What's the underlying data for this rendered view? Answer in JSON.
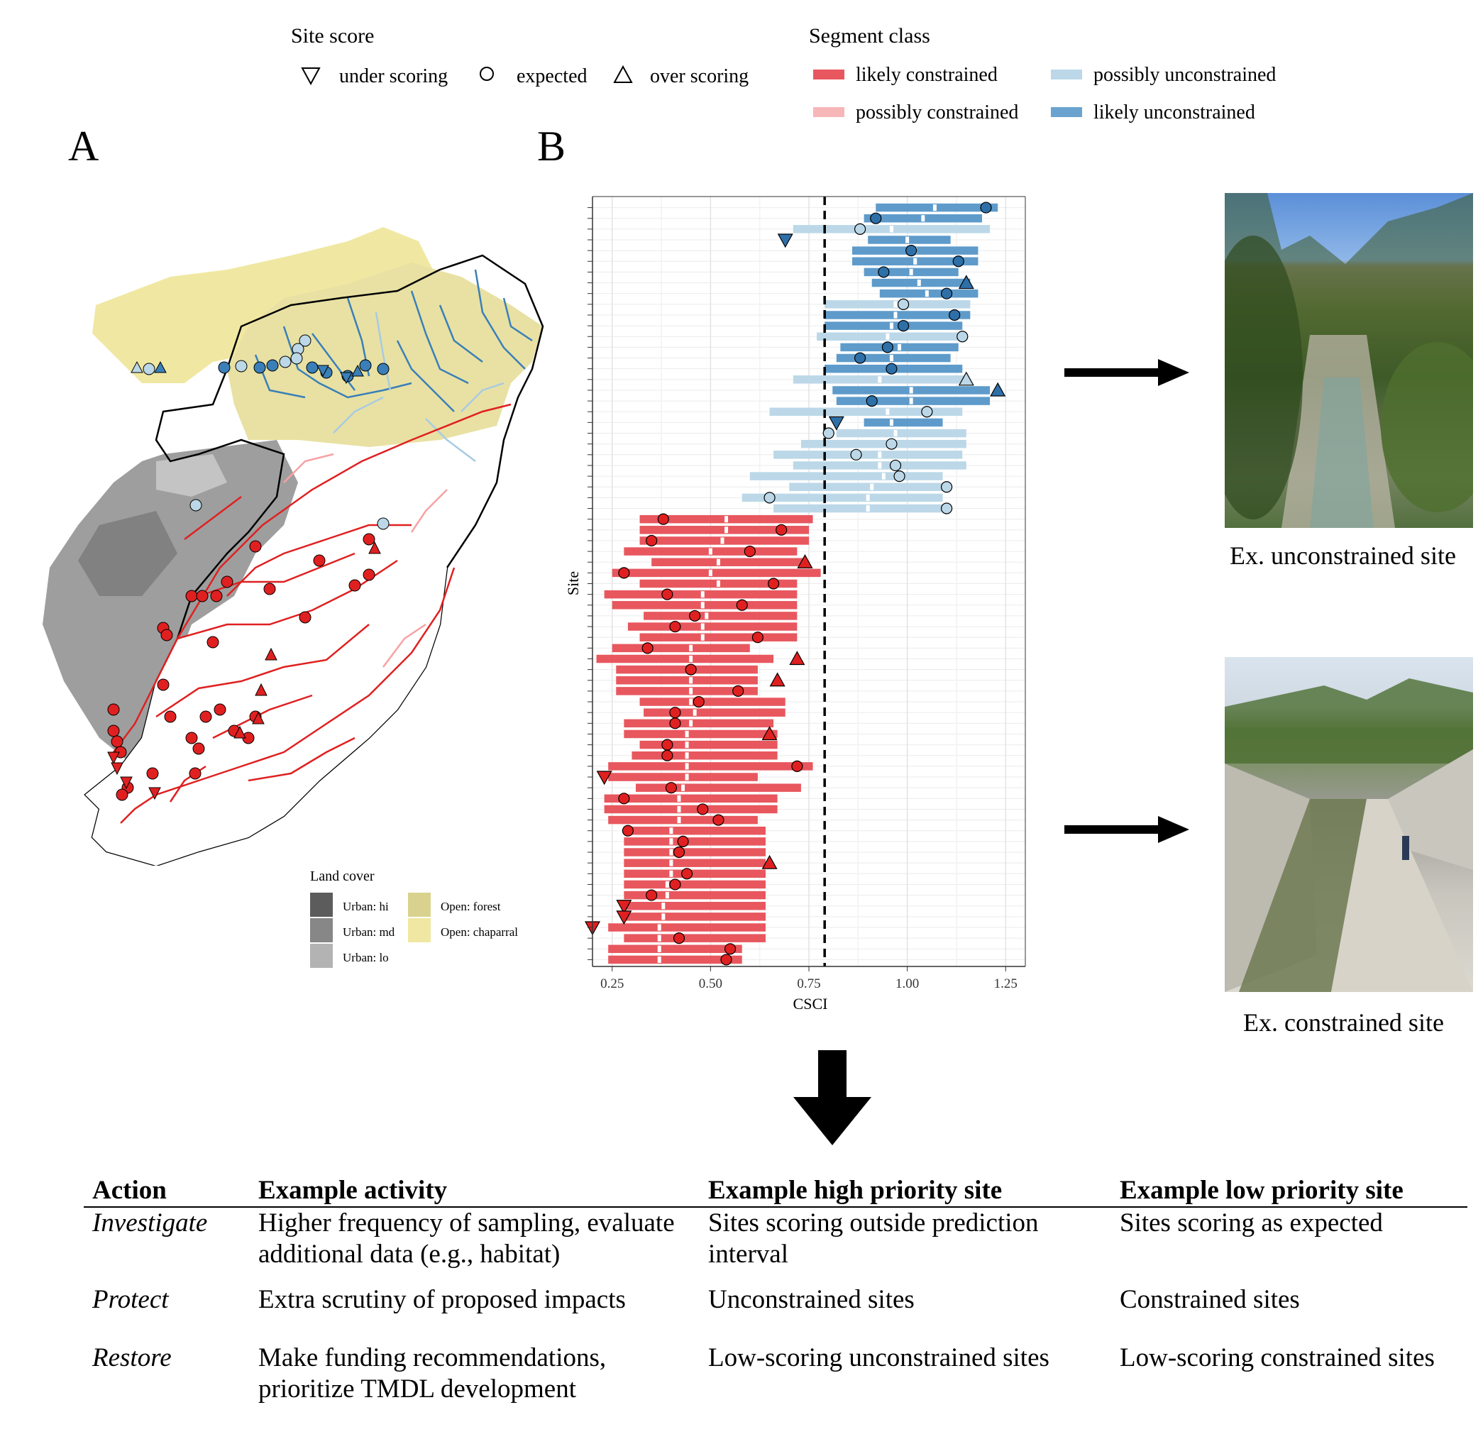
{
  "legend": {
    "site_score": {
      "title": "Site score",
      "items": [
        {
          "label": "under scoring",
          "symbol": "triangle-down"
        },
        {
          "label": "expected",
          "symbol": "circle"
        },
        {
          "label": "over scoring",
          "symbol": "triangle-up"
        }
      ]
    },
    "segment_class": {
      "title": "Segment class",
      "items": [
        {
          "label": "likely constrained",
          "color": "#E8575E"
        },
        {
          "label": "possibly constrained",
          "color": "#F7B6B8"
        },
        {
          "label": "possibly unconstrained",
          "color": "#BCD8E8"
        },
        {
          "label": "likely unconstrained",
          "color": "#6AA3CF"
        }
      ]
    }
  },
  "panels": {
    "a": "A",
    "b": "B"
  },
  "land_cover": {
    "title": "Land cover",
    "items": [
      {
        "label": "Urban: hi",
        "color": "#5C5C5C"
      },
      {
        "label": "Urban: md",
        "color": "#878787"
      },
      {
        "label": "Urban: lo",
        "color": "#B3B3B3"
      },
      {
        "label": "Open: forest",
        "color": "#D9D28F"
      },
      {
        "label": "Open: chaparral",
        "color": "#F0E8A2"
      }
    ]
  },
  "chart_data": {
    "type": "range-dot",
    "xlabel": "CSCI",
    "ylabel": "Site",
    "xlim": [
      0.2,
      1.3
    ],
    "xticks": [
      "0.25",
      "0.50",
      "0.75",
      "1.00",
      "1.25"
    ],
    "threshold": 0.79,
    "sites": [
      {
        "lo": 0.92,
        "hi": 1.23,
        "med": 1.07,
        "score": 1.2,
        "cls": "lu",
        "sym": "c"
      },
      {
        "lo": 0.89,
        "hi": 1.19,
        "med": 1.04,
        "score": 0.92,
        "cls": "lu",
        "sym": "c"
      },
      {
        "lo": 0.71,
        "hi": 1.21,
        "med": 0.96,
        "score": 0.88,
        "cls": "pu",
        "sym": "c"
      },
      {
        "lo": 0.9,
        "hi": 1.11,
        "med": 1.0,
        "score": 0.69,
        "cls": "lu",
        "sym": "d"
      },
      {
        "lo": 0.86,
        "hi": 1.18,
        "med": 1.02,
        "score": 1.01,
        "cls": "lu",
        "sym": "c"
      },
      {
        "lo": 0.86,
        "hi": 1.18,
        "med": 1.02,
        "score": 1.13,
        "cls": "lu",
        "sym": "c"
      },
      {
        "lo": 0.89,
        "hi": 1.13,
        "med": 1.01,
        "score": 0.94,
        "cls": "lu",
        "sym": "c"
      },
      {
        "lo": 0.91,
        "hi": 1.16,
        "med": 1.03,
        "score": 1.15,
        "cls": "lu",
        "sym": "u"
      },
      {
        "lo": 0.93,
        "hi": 1.18,
        "med": 1.05,
        "score": 1.1,
        "cls": "lu",
        "sym": "c"
      },
      {
        "lo": 0.79,
        "hi": 1.16,
        "med": 0.97,
        "score": 0.99,
        "cls": "pu",
        "sym": "c"
      },
      {
        "lo": 0.79,
        "hi": 1.16,
        "med": 0.97,
        "score": 1.12,
        "cls": "lu",
        "sym": "c"
      },
      {
        "lo": 0.79,
        "hi": 1.14,
        "med": 0.96,
        "score": 0.99,
        "cls": "lu",
        "sym": "c"
      },
      {
        "lo": 0.77,
        "hi": 1.14,
        "med": 0.95,
        "score": 1.14,
        "cls": "pu",
        "sym": "c"
      },
      {
        "lo": 0.83,
        "hi": 1.13,
        "med": 0.98,
        "score": 0.95,
        "cls": "lu",
        "sym": "c"
      },
      {
        "lo": 0.82,
        "hi": 1.11,
        "med": 0.96,
        "score": 0.88,
        "cls": "lu",
        "sym": "c"
      },
      {
        "lo": 0.79,
        "hi": 1.14,
        "med": 0.96,
        "score": 0.96,
        "cls": "lu",
        "sym": "c"
      },
      {
        "lo": 0.71,
        "hi": 1.15,
        "med": 0.93,
        "score": 1.15,
        "cls": "pu",
        "sym": "u"
      },
      {
        "lo": 0.81,
        "hi": 1.21,
        "med": 1.01,
        "score": 1.23,
        "cls": "lu",
        "sym": "u"
      },
      {
        "lo": 0.82,
        "hi": 1.21,
        "med": 1.01,
        "score": 0.91,
        "cls": "lu",
        "sym": "c"
      },
      {
        "lo": 0.65,
        "hi": 1.14,
        "med": 0.95,
        "score": 1.05,
        "cls": "pu",
        "sym": "c"
      },
      {
        "lo": 0.89,
        "hi": 1.09,
        "med": 0.96,
        "score": 0.82,
        "cls": "lu",
        "sym": "d"
      },
      {
        "lo": 0.82,
        "hi": 1.15,
        "med": 0.97,
        "score": 0.8,
        "cls": "pu",
        "sym": "c"
      },
      {
        "lo": 0.73,
        "hi": 1.15,
        "med": 0.96,
        "score": 0.96,
        "cls": "pu",
        "sym": "c"
      },
      {
        "lo": 0.66,
        "hi": 1.14,
        "med": 0.93,
        "score": 0.87,
        "cls": "pu",
        "sym": "c"
      },
      {
        "lo": 0.71,
        "hi": 1.15,
        "med": 0.93,
        "score": 0.97,
        "cls": "pu",
        "sym": "c"
      },
      {
        "lo": 0.6,
        "hi": 1.09,
        "med": 0.94,
        "score": 0.98,
        "cls": "pu",
        "sym": "c"
      },
      {
        "lo": 0.7,
        "hi": 1.1,
        "med": 0.91,
        "score": 1.1,
        "cls": "pu",
        "sym": "c"
      },
      {
        "lo": 0.58,
        "hi": 1.09,
        "med": 0.9,
        "score": 0.65,
        "cls": "pu",
        "sym": "c"
      },
      {
        "lo": 0.66,
        "hi": 1.09,
        "med": 0.9,
        "score": 1.1,
        "cls": "pu",
        "sym": "c"
      },
      {
        "lo": 0.32,
        "hi": 0.76,
        "med": 0.54,
        "score": 0.38,
        "cls": "lc",
        "sym": "c"
      },
      {
        "lo": 0.32,
        "hi": 0.75,
        "med": 0.54,
        "score": 0.68,
        "cls": "lc",
        "sym": "c"
      },
      {
        "lo": 0.32,
        "hi": 0.75,
        "med": 0.53,
        "score": 0.35,
        "cls": "lc",
        "sym": "c"
      },
      {
        "lo": 0.28,
        "hi": 0.72,
        "med": 0.5,
        "score": 0.6,
        "cls": "lc",
        "sym": "c"
      },
      {
        "lo": 0.35,
        "hi": 0.74,
        "med": 0.52,
        "score": 0.74,
        "cls": "lc",
        "sym": "u"
      },
      {
        "lo": 0.25,
        "hi": 0.78,
        "med": 0.5,
        "score": 0.28,
        "cls": "lc",
        "sym": "c"
      },
      {
        "lo": 0.32,
        "hi": 0.72,
        "med": 0.52,
        "score": 0.66,
        "cls": "lc",
        "sym": "c"
      },
      {
        "lo": 0.23,
        "hi": 0.72,
        "med": 0.48,
        "score": 0.39,
        "cls": "lc",
        "sym": "c"
      },
      {
        "lo": 0.25,
        "hi": 0.72,
        "med": 0.48,
        "score": 0.58,
        "cls": "lc",
        "sym": "c"
      },
      {
        "lo": 0.33,
        "hi": 0.72,
        "med": 0.49,
        "score": 0.46,
        "cls": "lc",
        "sym": "c"
      },
      {
        "lo": 0.29,
        "hi": 0.72,
        "med": 0.48,
        "score": 0.41,
        "cls": "lc",
        "sym": "c"
      },
      {
        "lo": 0.32,
        "hi": 0.72,
        "med": 0.48,
        "score": 0.62,
        "cls": "lc",
        "sym": "c"
      },
      {
        "lo": 0.25,
        "hi": 0.6,
        "med": 0.45,
        "score": 0.34,
        "cls": "lc",
        "sym": "c"
      },
      {
        "lo": 0.21,
        "hi": 0.66,
        "med": 0.45,
        "score": 0.72,
        "cls": "lc",
        "sym": "u"
      },
      {
        "lo": 0.26,
        "hi": 0.62,
        "med": 0.45,
        "score": 0.45,
        "cls": "lc",
        "sym": "c"
      },
      {
        "lo": 0.26,
        "hi": 0.62,
        "med": 0.45,
        "score": 0.67,
        "cls": "lc",
        "sym": "u"
      },
      {
        "lo": 0.26,
        "hi": 0.62,
        "med": 0.45,
        "score": 0.57,
        "cls": "lc",
        "sym": "c"
      },
      {
        "lo": 0.32,
        "hi": 0.69,
        "med": 0.45,
        "score": 0.47,
        "cls": "lc",
        "sym": "c"
      },
      {
        "lo": 0.33,
        "hi": 0.69,
        "med": 0.46,
        "score": 0.41,
        "cls": "lc",
        "sym": "c"
      },
      {
        "lo": 0.28,
        "hi": 0.66,
        "med": 0.45,
        "score": 0.41,
        "cls": "lc",
        "sym": "c"
      },
      {
        "lo": 0.28,
        "hi": 0.67,
        "med": 0.44,
        "score": 0.65,
        "cls": "lc",
        "sym": "u"
      },
      {
        "lo": 0.32,
        "hi": 0.67,
        "med": 0.44,
        "score": 0.39,
        "cls": "lc",
        "sym": "c"
      },
      {
        "lo": 0.3,
        "hi": 0.67,
        "med": 0.44,
        "score": 0.39,
        "cls": "lc",
        "sym": "c"
      },
      {
        "lo": 0.24,
        "hi": 0.76,
        "med": 0.44,
        "score": 0.72,
        "cls": "lc",
        "sym": "c"
      },
      {
        "lo": 0.24,
        "hi": 0.62,
        "med": 0.44,
        "score": 0.23,
        "cls": "lc",
        "sym": "d"
      },
      {
        "lo": 0.31,
        "hi": 0.73,
        "med": 0.43,
        "score": 0.4,
        "cls": "lc",
        "sym": "c"
      },
      {
        "lo": 0.23,
        "hi": 0.67,
        "med": 0.42,
        "score": 0.28,
        "cls": "lc",
        "sym": "c"
      },
      {
        "lo": 0.23,
        "hi": 0.67,
        "med": 0.42,
        "score": 0.48,
        "cls": "lc",
        "sym": "c"
      },
      {
        "lo": 0.24,
        "hi": 0.62,
        "med": 0.42,
        "score": 0.52,
        "cls": "lc",
        "sym": "c"
      },
      {
        "lo": 0.28,
        "hi": 0.64,
        "med": 0.4,
        "score": 0.29,
        "cls": "lc",
        "sym": "c"
      },
      {
        "lo": 0.28,
        "hi": 0.64,
        "med": 0.4,
        "score": 0.43,
        "cls": "lc",
        "sym": "c"
      },
      {
        "lo": 0.28,
        "hi": 0.64,
        "med": 0.4,
        "score": 0.42,
        "cls": "lc",
        "sym": "c"
      },
      {
        "lo": 0.28,
        "hi": 0.64,
        "med": 0.4,
        "score": 0.65,
        "cls": "lc",
        "sym": "u"
      },
      {
        "lo": 0.28,
        "hi": 0.64,
        "med": 0.4,
        "score": 0.44,
        "cls": "lc",
        "sym": "c"
      },
      {
        "lo": 0.28,
        "hi": 0.64,
        "med": 0.39,
        "score": 0.41,
        "cls": "lc",
        "sym": "c"
      },
      {
        "lo": 0.28,
        "hi": 0.64,
        "med": 0.39,
        "score": 0.35,
        "cls": "lc",
        "sym": "c"
      },
      {
        "lo": 0.28,
        "hi": 0.64,
        "med": 0.38,
        "score": 0.28,
        "cls": "lc",
        "sym": "d"
      },
      {
        "lo": 0.28,
        "hi": 0.64,
        "med": 0.38,
        "score": 0.28,
        "cls": "lc",
        "sym": "d"
      },
      {
        "lo": 0.24,
        "hi": 0.64,
        "med": 0.37,
        "score": 0.2,
        "cls": "lc",
        "sym": "d"
      },
      {
        "lo": 0.28,
        "hi": 0.64,
        "med": 0.37,
        "score": 0.42,
        "cls": "lc",
        "sym": "c"
      },
      {
        "lo": 0.24,
        "hi": 0.58,
        "med": 0.37,
        "score": 0.55,
        "cls": "lc",
        "sym": "c"
      },
      {
        "lo": 0.24,
        "hi": 0.58,
        "med": 0.37,
        "score": 0.54,
        "cls": "lc",
        "sym": "c"
      }
    ]
  },
  "photos": {
    "top_caption": "Ex. unconstrained site",
    "bottom_caption": "Ex. constrained site"
  },
  "table": {
    "headers": [
      "Action",
      "Example activity",
      "Example high priority site",
      "Example low priority site"
    ],
    "rows": [
      {
        "action": "Investigate",
        "activity": "Higher frequency of sampling, evaluate additional data (e.g., habitat)",
        "high": "Sites scoring outside prediction interval",
        "low": "Sites scoring as expected"
      },
      {
        "action": "Protect",
        "activity": "Extra scrutiny of proposed impacts",
        "high": "Unconstrained sites",
        "low": "Constrained sites"
      },
      {
        "action": "Restore",
        "activity": "Make funding recommendations, prioritize TMDL development",
        "high": "Low-scoring unconstrained sites",
        "low": "Low-scoring constrained sites"
      }
    ]
  }
}
